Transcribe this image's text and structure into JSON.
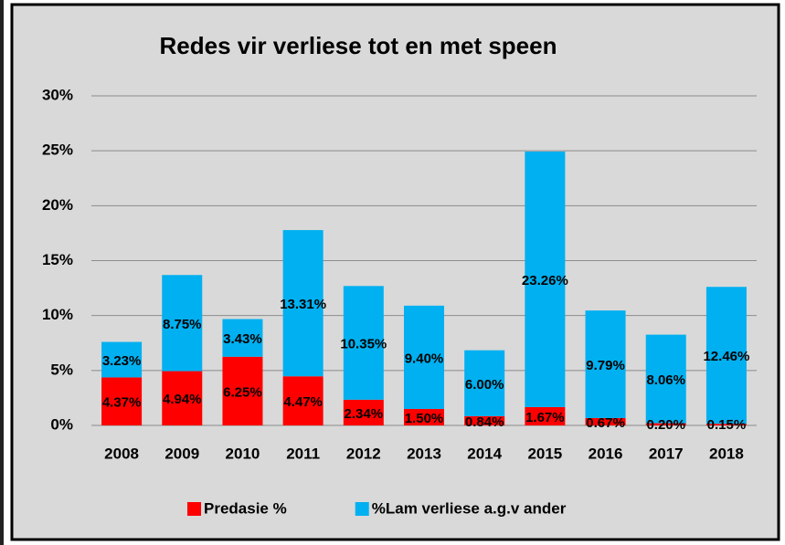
{
  "chart_data": {
    "type": "bar",
    "stacked": true,
    "title": "Redes vir verliese tot en met speen",
    "categories": [
      "2008",
      "2009",
      "2010",
      "2011",
      "2012",
      "2013",
      "2014",
      "2015",
      "2016",
      "2017",
      "2018"
    ],
    "series": [
      {
        "name": "Predasie %",
        "color": "#ff0000",
        "values": [
          4.37,
          4.94,
          6.25,
          4.47,
          2.34,
          1.5,
          0.84,
          1.67,
          0.67,
          0.2,
          0.15
        ],
        "value_labels": [
          "4.37%",
          "4.94%",
          "6.25%",
          "4.47%",
          "2.34%",
          "1.50%",
          "0.84%",
          "1.67%",
          "0.67%",
          "0.20%",
          "0.15%"
        ]
      },
      {
        "name": "%Lam verliese a.g.v ander",
        "color": "#00b0f0",
        "values": [
          3.23,
          8.75,
          3.43,
          13.31,
          10.35,
          9.4,
          6.0,
          23.26,
          9.79,
          8.06,
          12.46
        ],
        "value_labels": [
          "3.23%",
          "8.75%",
          "3.43%",
          "13.31%",
          "10.35%",
          "9.40%",
          "6.00%",
          "23.26%",
          "9.79%",
          "8.06%",
          "12.46%"
        ]
      }
    ],
    "ylim": [
      0,
      30
    ],
    "yticks": [
      {
        "value": 0,
        "label": "0%"
      },
      {
        "value": 5,
        "label": "5%"
      },
      {
        "value": 10,
        "label": "10%"
      },
      {
        "value": 15,
        "label": "15%"
      },
      {
        "value": 20,
        "label": "20%"
      },
      {
        "value": 25,
        "label": "25%"
      },
      {
        "value": 30,
        "label": "30%"
      }
    ],
    "grid": true,
    "legend": "bottom"
  }
}
